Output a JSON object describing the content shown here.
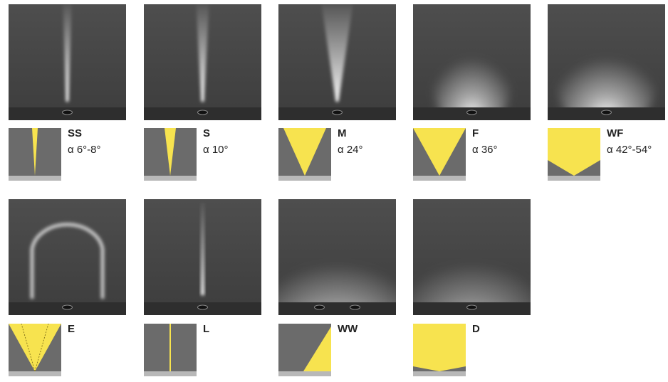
{
  "beams": [
    {
      "code": "SS",
      "angle": "α 6°-8°"
    },
    {
      "code": "S",
      "angle": "α 10°"
    },
    {
      "code": "M",
      "angle": "α 24°"
    },
    {
      "code": "F",
      "angle": "α 36°"
    },
    {
      "code": "WF",
      "angle": "α 42°-54°"
    },
    {
      "code": "E"
    },
    {
      "code": "L"
    },
    {
      "code": "WW"
    },
    {
      "code": "D"
    }
  ]
}
